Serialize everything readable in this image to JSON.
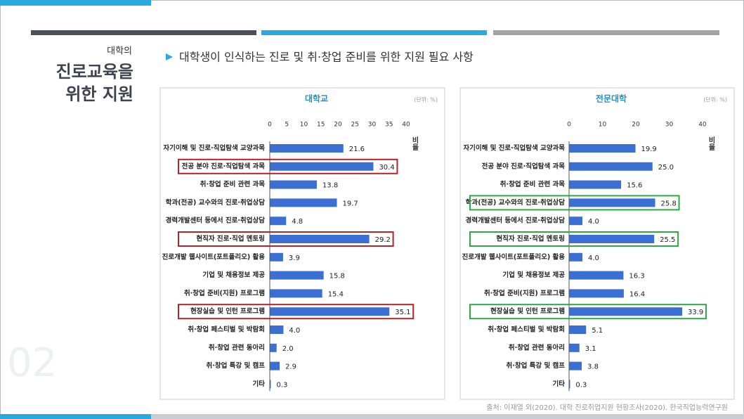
{
  "slide": {
    "kicker": "대학의",
    "title_lines": [
      "진로교육을",
      "위한 지원"
    ],
    "subtitle": "대학생이 인식하는 진로 및 취·창업 준비를 위한 지원 필요 사항",
    "source": "출처: 이재열 외(2020). 대학 진로취업지원 현황조사(2020). 한국직업능력연구원",
    "page_number": "02"
  },
  "chart_data": [
    {
      "type": "barh",
      "title": "대학교",
      "unit": "(단위: %)",
      "axis_label": "비율",
      "categories": [
        "자기이해 및 진로·직업탐색 교양과목",
        "전공 분야 진로·직업탐색 과목",
        "취·창업 준비 관련 과목",
        "학과(전공) 교수와의 진로·취업상담",
        "경력개발센터 등에서 진로·취업상담",
        "현직자 진로·직업 멘토링",
        "진로개발 웹사이트(포트폴리오) 활용",
        "기업 및 채용정보 제공",
        "취·창업 준비(지원) 프로그램",
        "현장실습 및 인턴 프로그램",
        "취·창업 페스티벌 및 박람회",
        "취·창업 관련 동아리",
        "취·창업 특강 및 캠프",
        "기타"
      ],
      "values": [
        21.6,
        30.4,
        13.8,
        19.7,
        4.8,
        29.2,
        3.9,
        15.8,
        15.4,
        35.1,
        4.0,
        2.0,
        2.9,
        0.3
      ],
      "value_labels": [
        "21.6",
        "30.4",
        "13.8",
        "19.7",
        "4.8",
        "29.2",
        "3.9",
        "15.8",
        "15.4",
        "35.1",
        "4.0",
        "2.0",
        "2.9",
        "0.3"
      ],
      "color": "#3b6fd4",
      "xlim": [
        0,
        40
      ],
      "xticks": [
        0,
        5,
        10,
        15,
        20,
        25,
        30,
        35,
        40
      ],
      "highlight": [
        1,
        5,
        9
      ],
      "highlight_color": "#b3242c"
    },
    {
      "type": "barh",
      "title": "전문대학",
      "unit": "(단위: %)",
      "axis_label": "비율",
      "categories": [
        "자기이해 및 진로·직업탐색 교양과목",
        "전공 분야 진로·직업탐색 과목",
        "취·창업 준비 관련 과목",
        "학과(전공) 교수와의 진로·취업상담",
        "경력개발센터 등에서 진로·취업상담",
        "현직자 진로·직업 멘토링",
        "진로개발 웹사이트(포트폴리오) 활용",
        "기업 및 채용정보 제공",
        "취·창업 준비(지원) 프로그램",
        "현장실습 및 인턴 프로그램",
        "취·창업 페스티벌 및 박람회",
        "취·창업 관련 동아리",
        "취·창업 특강 및 캠프",
        "기타"
      ],
      "values": [
        19.9,
        25.0,
        15.6,
        25.8,
        4.0,
        25.5,
        4.0,
        16.3,
        16.4,
        33.9,
        5.1,
        3.1,
        3.8,
        0.3
      ],
      "value_labels": [
        "19.9",
        "25.0",
        "15.6",
        "25.8",
        "4.0",
        "25.5",
        "4.0",
        "16.3",
        "16.4",
        "33.9",
        "5.1",
        "3.1",
        "3.8",
        "0.3"
      ],
      "color": "#3b6fd4",
      "xlim": [
        0,
        40
      ],
      "xticks": [
        0,
        10,
        20,
        30,
        40
      ],
      "highlight": [
        3,
        5,
        9
      ],
      "highlight_color": "#2fa84a"
    }
  ]
}
